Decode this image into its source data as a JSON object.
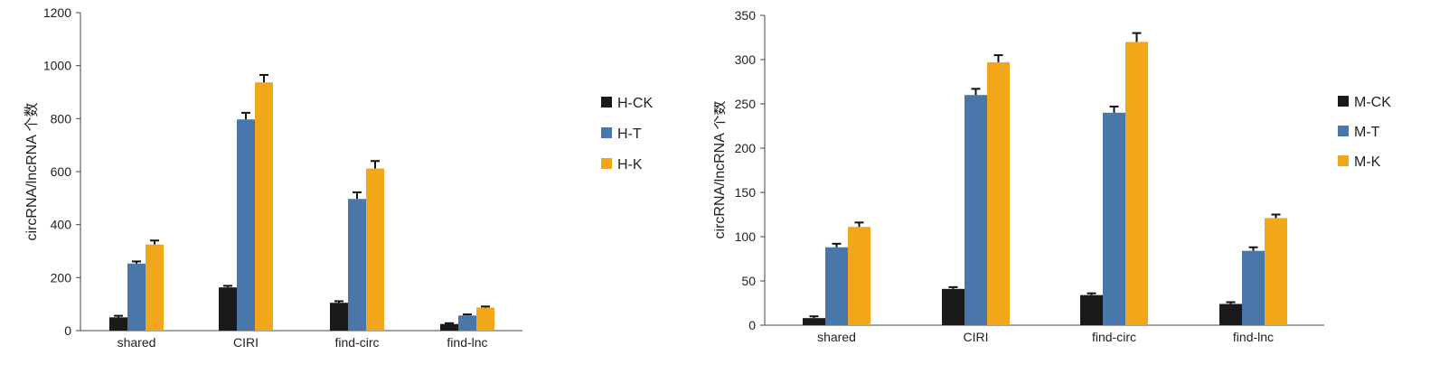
{
  "chart_data": [
    {
      "type": "bar",
      "categories": [
        "shared",
        "CIRI",
        "find-circ",
        "find-lnc"
      ],
      "series": [
        {
          "name": "H-CK",
          "color": "#1a1a1a",
          "values": [
            50,
            163,
            105,
            25
          ],
          "errors": [
            6,
            6,
            6,
            3
          ]
        },
        {
          "name": "H-T",
          "color": "#4a77aa",
          "values": [
            253,
            797,
            497,
            57
          ],
          "errors": [
            8,
            25,
            25,
            4
          ]
        },
        {
          "name": "H-K",
          "color": "#f2a71b",
          "values": [
            325,
            937,
            612,
            87
          ],
          "errors": [
            15,
            28,
            28,
            4
          ]
        }
      ],
      "xlabel": "",
      "ylabel": "circRNA/lncRNA 个数",
      "ylim": [
        0,
        1200
      ],
      "yticks": [
        0,
        200,
        400,
        600,
        800,
        1000,
        1200
      ],
      "ytick_labels": [
        "0",
        "200",
        "400",
        "600",
        "800",
        "1000",
        "1200"
      ],
      "legend_position": "right",
      "grid": false
    },
    {
      "type": "bar",
      "categories": [
        "shared",
        "CIRI",
        "find-circ",
        "find-lnc"
      ],
      "series": [
        {
          "name": "M-CK",
          "color": "#1a1a1a",
          "values": [
            8,
            41,
            34,
            24
          ],
          "errors": [
            2,
            2,
            2,
            2
          ]
        },
        {
          "name": "M-T",
          "color": "#4a77aa",
          "values": [
            88,
            260,
            240,
            84
          ],
          "errors": [
            4,
            7,
            7,
            4
          ]
        },
        {
          "name": "M-K",
          "color": "#f2a71b",
          "values": [
            111,
            297,
            320,
            121
          ],
          "errors": [
            5,
            8,
            10,
            4
          ]
        }
      ],
      "xlabel": "",
      "ylabel": "circRNA/lncRNA 个数",
      "ylim": [
        0,
        350
      ],
      "yticks": [
        0,
        50,
        100,
        150,
        200,
        250,
        300,
        350
      ],
      "ytick_labels": [
        "0",
        "50",
        "100",
        "150",
        "200",
        "250",
        "300",
        "350"
      ],
      "legend_position": "right",
      "grid": false
    }
  ]
}
